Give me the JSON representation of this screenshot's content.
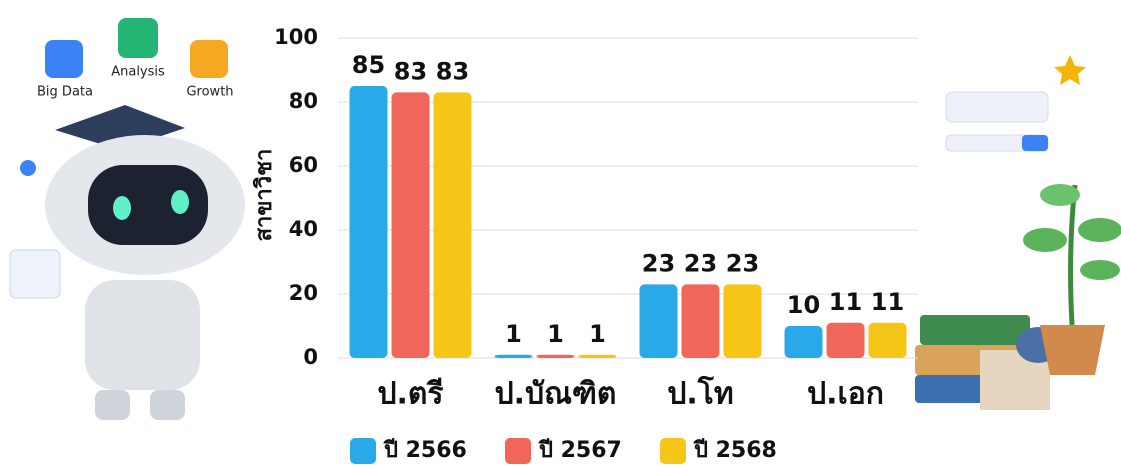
{
  "chart_data": {
    "type": "bar",
    "y_label": "สาขาวิชา",
    "categories": [
      "ป.ตรี",
      "ป.บัณฑิต",
      "ป.โท",
      "ป.เอก"
    ],
    "series": [
      {
        "name": "ปี 2566",
        "color": "#29a9e8",
        "values": [
          85,
          1,
          23,
          10
        ]
      },
      {
        "name": "ปี 2567",
        "color": "#f0675a",
        "values": [
          83,
          1,
          23,
          11
        ]
      },
      {
        "name": "ปี 2568",
        "color": "#f5c518",
        "values": [
          83,
          1,
          23,
          11
        ]
      }
    ],
    "ylim": [
      0,
      100
    ],
    "yticks": [
      0,
      20,
      40,
      60,
      80,
      100
    ],
    "grid": true,
    "legend": "bottom",
    "annotations": [
      "Big Data",
      "Analysis",
      "Growth"
    ]
  }
}
